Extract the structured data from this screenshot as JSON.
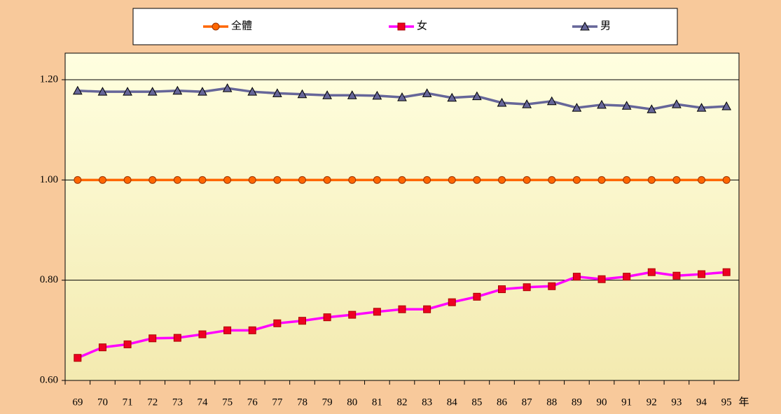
{
  "chart_data": {
    "type": "line",
    "x_label": "年",
    "categories": [
      "69",
      "70",
      "71",
      "72",
      "73",
      "74",
      "75",
      "76",
      "77",
      "78",
      "79",
      "80",
      "81",
      "82",
      "83",
      "84",
      "85",
      "86",
      "87",
      "88",
      "89",
      "90",
      "91",
      "92",
      "93",
      "94",
      "95"
    ],
    "series": [
      {
        "name": "全體",
        "color": "#ff6600",
        "marker": "circle",
        "marker_color": "#ff6600",
        "values": [
          1,
          1,
          1,
          1,
          1,
          1,
          1,
          1,
          1,
          1,
          1,
          1,
          1,
          1,
          1,
          1,
          1,
          1,
          1,
          1,
          1,
          1,
          1,
          1,
          1,
          1,
          1
        ]
      },
      {
        "name": "女",
        "color": "#ff00ff",
        "marker": "square",
        "marker_color": "#ee0022",
        "values": [
          0.645,
          0.666,
          0.672,
          0.684,
          0.685,
          0.692,
          0.7,
          0.7,
          0.714,
          0.719,
          0.726,
          0.731,
          0.737,
          0.742,
          0.742,
          0.756,
          0.767,
          0.782,
          0.786,
          0.788,
          0.807,
          0.802,
          0.807,
          0.816,
          0.809,
          0.812,
          0.816
        ]
      },
      {
        "name": "男",
        "color": "#666699",
        "marker": "triangle",
        "marker_color": "#666699",
        "values": [
          1.178,
          1.176,
          1.176,
          1.176,
          1.178,
          1.176,
          1.183,
          1.176,
          1.173,
          1.171,
          1.169,
          1.169,
          1.168,
          1.165,
          1.173,
          1.164,
          1.167,
          1.154,
          1.151,
          1.157,
          1.144,
          1.15,
          1.148,
          1.141,
          1.151,
          1.144,
          1.147
        ]
      }
    ],
    "ylim": [
      0.6,
      1.253
    ],
    "yticks": [
      {
        "value": 0.6,
        "label": "0.60"
      },
      {
        "value": 0.8,
        "label": "0.80"
      },
      {
        "value": 1.0,
        "label": "1.00"
      },
      {
        "value": 1.2,
        "label": "1.20"
      }
    ],
    "grid": true,
    "legend": "top"
  }
}
